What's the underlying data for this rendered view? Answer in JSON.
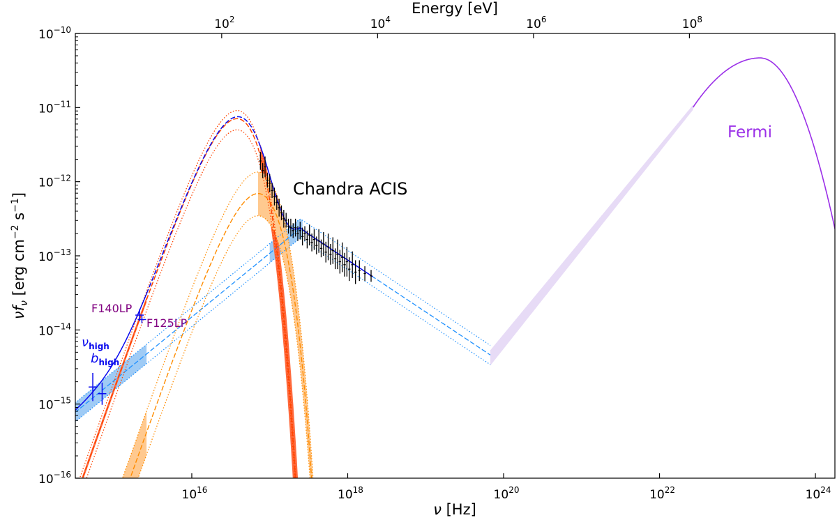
{
  "chart_data": {
    "type": "line",
    "title": "",
    "xlabel": "ν [Hz]",
    "xlabel_parts": {
      "nu": "ν",
      "unit": " [Hz]"
    },
    "top_xlabel": "Energy [eV]",
    "ylabel": "νfν [erg cm−2 s−1]",
    "ylabel_parts": {
      "nu": "ν",
      "f": "f",
      "sub": "ν",
      "a": " [erg  cm",
      "sup1": "−2",
      "b": " s",
      "sup2": "−1",
      "c": "]"
    },
    "xscale": "log",
    "yscale": "log",
    "xlim_log10": [
      14.506,
      24.25
    ],
    "ylim_log10": [
      -16,
      -10
    ],
    "x_ticks_log10": [
      16,
      18,
      20,
      22,
      24
    ],
    "y_ticks_log10": [
      -16,
      -15,
      -14,
      -13,
      -12,
      -11,
      -10
    ],
    "top_ticks_energy_log10_eV": [
      2,
      4,
      6,
      8
    ],
    "tick_base": "10",
    "ev_to_hz_log10": 14.3835,
    "grid": false,
    "colors": {
      "thermal1": "#ff4500",
      "thermal1_fill": "#ff6a3d",
      "thermal2": "#ff8c00",
      "thermal2_fill": "#ffc98f",
      "powerlaw": "#1e90ff",
      "powerlaw_fill": "#9fcbf5",
      "total": "#0a0aee",
      "fermi": "#9b30e8",
      "fermi_fill": "#e7dbf6",
      "hst_label": "#800080",
      "data": "#000000"
    },
    "components": {
      "thermal1": {
        "model": "modified_blackbody_nuFnu_nu4",
        "peak_nu_log10": 16.58,
        "peak_flux_log10": -11.15,
        "upper_peak_flux_log10": -11.04,
        "lower_peak_flux_log10": -11.3
      },
      "thermal2": {
        "model": "modified_blackbody_nuFnu_nu4",
        "peak_nu_log10": 16.85,
        "peak_flux_log10": -12.16,
        "upper_peak_flux_log10": -11.87,
        "lower_peak_flux_log10": -12.46
      },
      "powerlaw": {
        "model": "broken_power_law",
        "break_nu_log10": 17.39,
        "break_flux_log10": -12.63,
        "index_low": 0.86,
        "index_high": -0.7,
        "nu_range_log10": [
          14.5,
          19.83
        ],
        "band_log10": 0.13
      },
      "fermi": {
        "band_start_nu_log10": 19.83,
        "band_start_flux_log10": [
          -14.28,
          -14.48
        ],
        "band_end_nu_log10": 22.43,
        "band_end_flux_log10": [
          -10.97,
          -11.03
        ],
        "peak_nu_log10": 23.29,
        "peak_flux_log10": -10.33,
        "curvature_low": 0.9,
        "curvature_high": 2.5,
        "end_nu_log10": 24.25
      }
    },
    "hst_points": [
      {
        "nu_log10": 14.73,
        "flux_log10": -14.77,
        "err": 0.19
      },
      {
        "nu_log10": 14.85,
        "flux_log10": -14.86,
        "err": 0.15
      },
      {
        "nu_log10": 15.33,
        "flux_log10": -13.8,
        "err": 0.08
      },
      {
        "nu_log10": 15.36,
        "flux_log10": -13.86,
        "err": 0.05
      }
    ],
    "chandra_points": [
      [
        16.88,
        -11.72,
        0.12
      ],
      [
        16.91,
        -11.85,
        0.1
      ],
      [
        16.94,
        -11.8,
        0.14
      ],
      [
        16.97,
        -11.98,
        0.1
      ],
      [
        17.0,
        -12.02,
        0.12
      ],
      [
        17.03,
        -12.12,
        0.1
      ],
      [
        17.06,
        -12.2,
        0.12
      ],
      [
        17.09,
        -12.28,
        0.1
      ],
      [
        17.12,
        -12.35,
        0.12
      ],
      [
        17.15,
        -12.42,
        0.1
      ],
      [
        17.18,
        -12.5,
        0.12
      ],
      [
        17.21,
        -12.52,
        0.1
      ],
      [
        17.24,
        -12.6,
        0.1
      ],
      [
        17.27,
        -12.62,
        0.12
      ],
      [
        17.3,
        -12.66,
        0.1
      ],
      [
        17.33,
        -12.62,
        0.12
      ],
      [
        17.36,
        -12.7,
        0.1
      ],
      [
        17.39,
        -12.66,
        0.12
      ],
      [
        17.42,
        -12.74,
        0.12
      ],
      [
        17.45,
        -12.7,
        0.1
      ],
      [
        17.48,
        -12.78,
        0.12
      ],
      [
        17.51,
        -12.72,
        0.14
      ],
      [
        17.54,
        -12.82,
        0.12
      ],
      [
        17.57,
        -12.78,
        0.14
      ],
      [
        17.6,
        -12.86,
        0.12
      ],
      [
        17.63,
        -12.8,
        0.16
      ],
      [
        17.66,
        -12.9,
        0.12
      ],
      [
        17.69,
        -12.84,
        0.16
      ],
      [
        17.72,
        -12.95,
        0.14
      ],
      [
        17.75,
        -12.88,
        0.18
      ],
      [
        17.78,
        -12.98,
        0.14
      ],
      [
        17.81,
        -12.93,
        0.18
      ],
      [
        17.84,
        -13.04,
        0.14
      ],
      [
        17.87,
        -12.98,
        0.2
      ],
      [
        17.9,
        -13.08,
        0.16
      ],
      [
        17.93,
        -13.02,
        0.2
      ],
      [
        17.96,
        -13.12,
        0.16
      ],
      [
        17.99,
        -13.08,
        0.2
      ],
      [
        18.02,
        -13.18,
        0.16
      ],
      [
        18.06,
        -13.12,
        0.18
      ],
      [
        18.1,
        -13.22,
        0.16
      ],
      [
        18.15,
        -13.2,
        0.14
      ],
      [
        18.22,
        -13.24,
        0.1
      ],
      [
        18.3,
        -13.27,
        0.08
      ]
    ],
    "annotations": {
      "chandra": "Chandra ACIS",
      "fermi": "Fermi",
      "f140lp": "F140LP",
      "f125lp": "F125LP",
      "nu_high_main": "ν",
      "nu_high_sub": "high",
      "b_high_main": "b",
      "b_high_sub": "high"
    }
  }
}
